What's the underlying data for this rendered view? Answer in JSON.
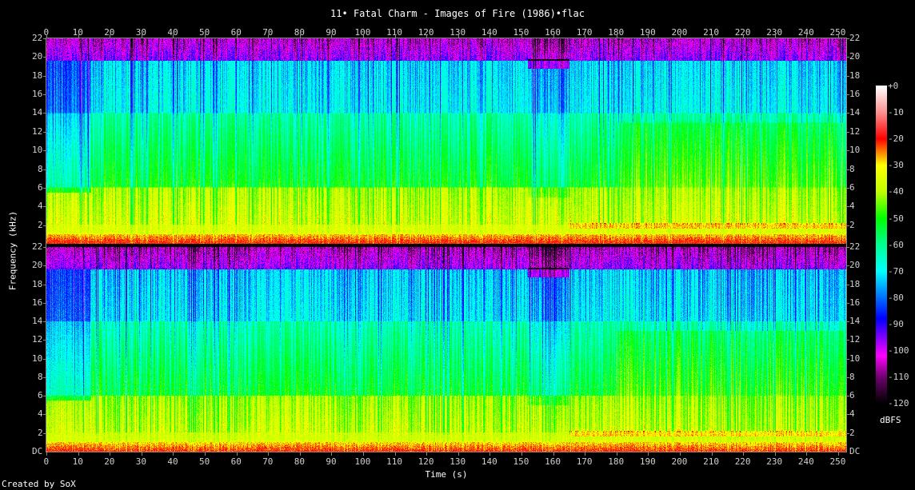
{
  "chart_data": {
    "type": "heatmap",
    "title": "11• Fatal Charm - Images of Fire (1986)•flac",
    "xlabel": "Time (s)",
    "ylabel": "Frequency (kHz)",
    "x_ticks": [
      "0",
      "10",
      "20",
      "30",
      "40",
      "50",
      "60",
      "70",
      "80",
      "90",
      "100",
      "110",
      "120",
      "130",
      "140",
      "150",
      "160",
      "170",
      "180",
      "190",
      "200",
      "210",
      "220",
      "230",
      "240",
      "250"
    ],
    "y_ticks": [
      "22",
      "20",
      "18",
      "16",
      "14",
      "12",
      "10",
      "8",
      "6",
      "4",
      "2"
    ],
    "y_bottom_label": "DC",
    "xlim": [
      0,
      258
    ],
    "ylim_khz": [
      0,
      22
    ],
    "channels": 2,
    "colorbar": {
      "unit": "dBFS",
      "ticks": [
        "+0",
        "-10",
        "-20",
        "-30",
        "-40",
        "-50",
        "-60",
        "-70",
        "-80",
        "-90",
        "-100",
        "-110",
        "-120"
      ],
      "range": [
        -120,
        0
      ],
      "stops": [
        {
          "db": 0,
          "color": "#ffffff"
        },
        {
          "db": -10,
          "color": "#ff9090"
        },
        {
          "db": -20,
          "color": "#ff0000"
        },
        {
          "db": -25,
          "color": "#ff8000"
        },
        {
          "db": -30,
          "color": "#ffff00"
        },
        {
          "db": -40,
          "color": "#c0ff00"
        },
        {
          "db": -50,
          "color": "#00ff00"
        },
        {
          "db": -60,
          "color": "#00ff90"
        },
        {
          "db": -70,
          "color": "#00ffff"
        },
        {
          "db": -80,
          "color": "#0070ff"
        },
        {
          "db": -88,
          "color": "#0000ff"
        },
        {
          "db": -95,
          "color": "#8000ff"
        },
        {
          "db": -102,
          "color": "#ff00ff"
        },
        {
          "db": -110,
          "color": "#700070"
        },
        {
          "db": -120,
          "color": "#000000"
        }
      ]
    }
  },
  "footer": {
    "credit": "Created by SoX"
  }
}
